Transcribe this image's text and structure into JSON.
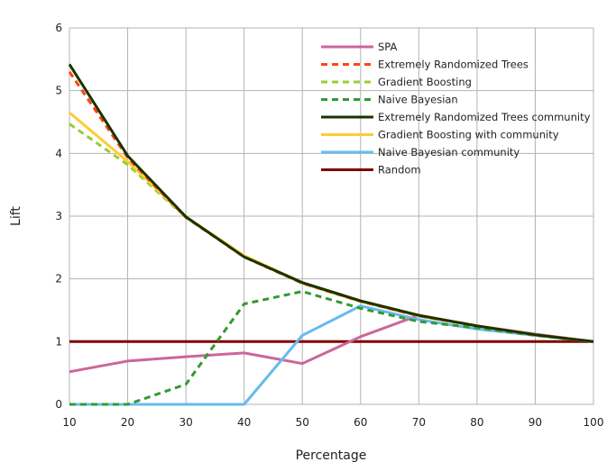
{
  "chart_data": {
    "type": "line",
    "title": "",
    "xlabel": "Percentage",
    "ylabel": "Lift",
    "x": [
      10,
      20,
      30,
      40,
      50,
      60,
      70,
      80,
      90,
      100
    ],
    "xlim": [
      10,
      100
    ],
    "ylim": [
      0,
      6
    ],
    "xticks": [
      "10",
      "20",
      "30",
      "40",
      "50",
      "60",
      "70",
      "80",
      "90",
      "100"
    ],
    "yticks": [
      "0",
      "1",
      "2",
      "3",
      "4",
      "5",
      "6"
    ],
    "grid": true,
    "legend_position": "top-right",
    "series": [
      {
        "name": "SPA",
        "color": "#cc6699",
        "dash": "solid",
        "values": [
          0.52,
          0.69,
          0.76,
          0.82,
          0.65,
          1.08,
          1.42,
          1.25,
          1.12,
          1.0
        ]
      },
      {
        "name": "Extremely Randomized Trees",
        "color": "#ff4411",
        "dash": "dashed",
        "values": [
          5.3,
          3.93,
          2.98,
          2.35,
          1.93,
          1.64,
          1.41,
          1.25,
          1.11,
          1.0
        ]
      },
      {
        "name": "Gradient Boosting",
        "color": "#99cc33",
        "dash": "dashed",
        "values": [
          4.47,
          3.82,
          2.98,
          2.36,
          1.93,
          1.64,
          1.41,
          1.25,
          1.11,
          1.0
        ]
      },
      {
        "name": "Naive Bayesian",
        "color": "#339933",
        "dash": "dashed",
        "values": [
          0.0,
          0.0,
          0.32,
          1.6,
          1.8,
          1.53,
          1.32,
          1.22,
          1.1,
          1.0
        ]
      },
      {
        "name": "Extremely Randomized Trees community",
        "color": "#1a3300",
        "dash": "solid",
        "values": [
          5.42,
          3.96,
          2.99,
          2.35,
          1.94,
          1.65,
          1.42,
          1.25,
          1.11,
          1.0
        ]
      },
      {
        "name": "Gradient Boosting with community",
        "color": "#ffcc33",
        "dash": "solid",
        "values": [
          4.65,
          3.87,
          2.99,
          2.37,
          1.94,
          1.65,
          1.42,
          1.25,
          1.11,
          1.0
        ]
      },
      {
        "name": "Naive Bayesian community",
        "color": "#66bbee",
        "dash": "solid",
        "values": [
          0.0,
          0.0,
          0.0,
          0.0,
          1.1,
          1.57,
          1.35,
          1.2,
          1.1,
          1.0
        ]
      },
      {
        "name": "Random",
        "color": "#800000",
        "dash": "solid",
        "values": [
          1,
          1,
          1,
          1,
          1,
          1,
          1,
          1,
          1,
          1
        ]
      }
    ]
  }
}
